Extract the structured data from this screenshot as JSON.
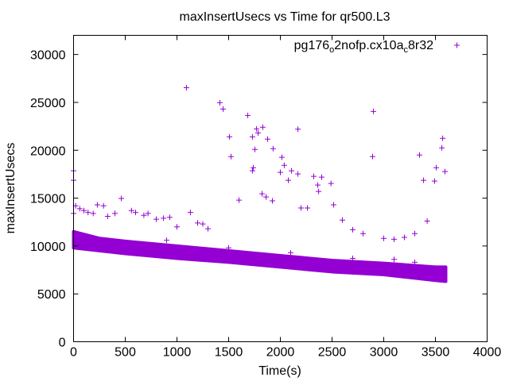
{
  "chart_data": {
    "type": "scatter",
    "title": "maxInsertUsecs vs Time for qr500.L3",
    "xlabel": "Time(s)",
    "ylabel": "maxInsertUsecs",
    "xlim": [
      0,
      4000
    ],
    "ylim": [
      0,
      32000
    ],
    "xticks": [
      0,
      500,
      1000,
      1500,
      2000,
      2500,
      3000,
      3500,
      4000
    ],
    "yticks": [
      0,
      5000,
      10000,
      15000,
      20000,
      25000,
      30000
    ],
    "grid": false,
    "legend": {
      "placement": "top-right",
      "base": "pg176",
      "sub1": "o",
      "mid": "2nofp.cx10a",
      "sub2": "c",
      "tail": "8r32"
    },
    "series": [
      {
        "name": "pg176_o2nofp.cx10a_c8r32",
        "color": "#9400D3",
        "dense_band": {
          "x": [
            0,
            250,
            500,
            1000,
            1500,
            2000,
            2500,
            3000,
            3500,
            3600
          ],
          "low": [
            9800,
            9500,
            9200,
            8700,
            8300,
            7800,
            7300,
            7000,
            6400,
            6300
          ],
          "high": [
            11500,
            10800,
            10500,
            10000,
            9500,
            9000,
            8500,
            8200,
            7800,
            7800
          ]
        },
        "points": [
          [
            0,
            17850
          ],
          [
            0,
            16860
          ],
          [
            0,
            13400
          ],
          [
            20,
            14200
          ],
          [
            60,
            13900
          ],
          [
            100,
            13700
          ],
          [
            140,
            13500
          ],
          [
            190,
            13400
          ],
          [
            230,
            14300
          ],
          [
            290,
            14200
          ],
          [
            330,
            13100
          ],
          [
            400,
            13400
          ],
          [
            462,
            14960
          ],
          [
            560,
            13700
          ],
          [
            600,
            13500
          ],
          [
            680,
            13200
          ],
          [
            720,
            13400
          ],
          [
            800,
            12800
          ],
          [
            870,
            12900
          ],
          [
            930,
            13000
          ],
          [
            1000,
            12000
          ],
          [
            1092,
            26530
          ],
          [
            1130,
            13500
          ],
          [
            1200,
            12400
          ],
          [
            1250,
            12300
          ],
          [
            1300,
            11800
          ],
          [
            1415,
            24960
          ],
          [
            1446,
            24300
          ],
          [
            1508,
            21400
          ],
          [
            1523,
            19340
          ],
          [
            1600,
            14790
          ],
          [
            1685,
            23640
          ],
          [
            1730,
            21400
          ],
          [
            1730,
            17850
          ],
          [
            1738,
            18180
          ],
          [
            1754,
            20080
          ],
          [
            1770,
            22230
          ],
          [
            1785,
            21800
          ],
          [
            1830,
            22400
          ],
          [
            1823,
            15450
          ],
          [
            1862,
            15120
          ],
          [
            1877,
            21160
          ],
          [
            1923,
            14710
          ],
          [
            1930,
            20170
          ],
          [
            2000,
            17690
          ],
          [
            2015,
            19260
          ],
          [
            2038,
            18430
          ],
          [
            2077,
            16860
          ],
          [
            2108,
            17850
          ],
          [
            2170,
            17520
          ],
          [
            2170,
            22200
          ],
          [
            2200,
            13970
          ],
          [
            2262,
            13970
          ],
          [
            2323,
            17270
          ],
          [
            2362,
            16360
          ],
          [
            2370,
            15700
          ],
          [
            2400,
            17190
          ],
          [
            2490,
            16530
          ],
          [
            2515,
            14300
          ],
          [
            2600,
            12700
          ],
          [
            2700,
            11700
          ],
          [
            2800,
            11300
          ],
          [
            2892,
            19340
          ],
          [
            2900,
            24050
          ],
          [
            3000,
            10800
          ],
          [
            3100,
            10700
          ],
          [
            3200,
            10900
          ],
          [
            3300,
            11300
          ],
          [
            3346,
            19500
          ],
          [
            3385,
            16860
          ],
          [
            3420,
            12600
          ],
          [
            3492,
            16780
          ],
          [
            3508,
            18180
          ],
          [
            3562,
            20250
          ],
          [
            3570,
            21240
          ],
          [
            3592,
            17770
          ],
          [
            50,
            10500
          ],
          [
            150,
            10300
          ],
          [
            250,
            10100
          ],
          [
            350,
            10200
          ],
          [
            450,
            9900
          ],
          [
            550,
            9700
          ],
          [
            650,
            9800
          ],
          [
            750,
            9500
          ],
          [
            850,
            9400
          ],
          [
            950,
            9300
          ],
          [
            1050,
            9100
          ],
          [
            1150,
            9200
          ],
          [
            1250,
            8900
          ],
          [
            1350,
            8800
          ],
          [
            1450,
            8700
          ],
          [
            1550,
            8600
          ],
          [
            1650,
            8500
          ],
          [
            1750,
            8300
          ],
          [
            1850,
            8200
          ],
          [
            1950,
            8300
          ],
          [
            2050,
            8100
          ],
          [
            2150,
            7900
          ],
          [
            2250,
            7800
          ],
          [
            2350,
            7700
          ],
          [
            2450,
            7600
          ],
          [
            2550,
            7500
          ],
          [
            2650,
            7400
          ],
          [
            2750,
            7300
          ],
          [
            2850,
            7500
          ],
          [
            2950,
            7300
          ],
          [
            3050,
            7200
          ],
          [
            3150,
            7100
          ],
          [
            3250,
            7000
          ],
          [
            3350,
            6900
          ],
          [
            3450,
            6800
          ],
          [
            3550,
            6900
          ],
          [
            900,
            10600
          ],
          [
            1500,
            9800
          ],
          [
            2100,
            9300
          ],
          [
            2700,
            8700
          ],
          [
            3100,
            8600
          ],
          [
            3300,
            8300
          ]
        ]
      }
    ]
  }
}
